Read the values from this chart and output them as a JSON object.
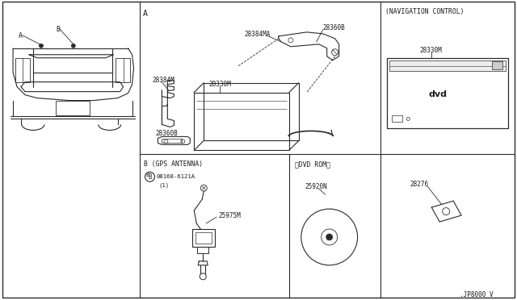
{
  "bg_color": "#ffffff",
  "line_color": "#2a2a2a",
  "diagram_code": ".JP8000 V",
  "labels": {
    "nav_control": "(NAVIGATION CONTROL)",
    "gps_antenna": "B (GPS ANTENNA)",
    "dvd_rom": "（DVD ROM）",
    "28384MA": "28384MA",
    "28360B_top": "28360B",
    "28384M": "28384M",
    "28330M_main": "28330M",
    "28360B_bot": "28360B",
    "28330M_nav": "28330M",
    "25975M": "25975M",
    "25920N": "25920N",
    "28276": "28276"
  }
}
